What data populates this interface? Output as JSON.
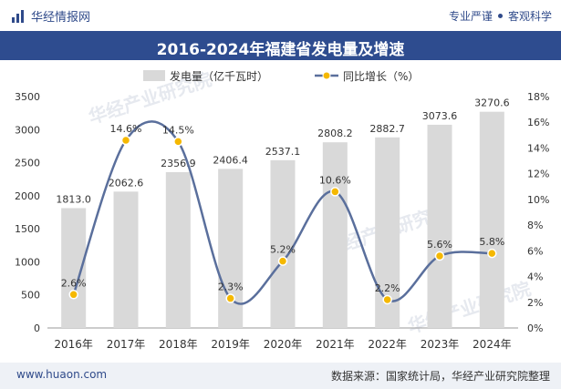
{
  "header": {
    "brand": "华经情报网",
    "slogan_left": "专业严谨",
    "slogan_right": "客观科学"
  },
  "watermark": "华经产业研究院",
  "footer": {
    "url": "www.huaon.com",
    "source": "数据来源：国家统计局，华经产业研究院整理"
  },
  "colors": {
    "brand_blue": "#2e4c8f",
    "bar": "#d9d9d9",
    "line": "#5a6f9c",
    "marker": "#f5b800"
  },
  "chart_data": {
    "type": "bar",
    "title": "2016-2024年福建省发电量及增速",
    "categories": [
      "2016年",
      "2017年",
      "2018年",
      "2019年",
      "2020年",
      "2021年",
      "2022年",
      "2023年",
      "2024年"
    ],
    "series": [
      {
        "name": "发电量（亿千瓦时）",
        "type": "bar",
        "axis": "left",
        "values": [
          1813.0,
          2062.6,
          2356.9,
          2406.4,
          2537.1,
          2808.2,
          2882.7,
          3073.6,
          3270.6
        ],
        "labels": [
          "1813.0",
          "2062.6",
          "2356.9",
          "2406.4",
          "2537.1",
          "2808.2",
          "2882.7",
          "3073.6",
          "3270.6"
        ]
      },
      {
        "name": "同比增长（%）",
        "type": "line",
        "axis": "right",
        "values": [
          2.6,
          14.6,
          14.5,
          2.3,
          5.2,
          10.6,
          2.2,
          5.6,
          5.8
        ],
        "labels": [
          "2.6%",
          "14.6%",
          "14.5%",
          "2.3%",
          "5.2%",
          "10.6%",
          "2.2%",
          "5.6%",
          "5.8%"
        ]
      }
    ],
    "ylim_left": [
      0,
      3500
    ],
    "yticks_left": [
      "0",
      "500",
      "1000",
      "1500",
      "2000",
      "2500",
      "3000",
      "3500"
    ],
    "ylim_right": [
      0,
      18
    ],
    "yticks_right": [
      "0%",
      "2%",
      "4%",
      "6%",
      "8%",
      "10%",
      "12%",
      "14%",
      "16%",
      "18%"
    ],
    "legend_position": "top-center",
    "grid": false
  }
}
